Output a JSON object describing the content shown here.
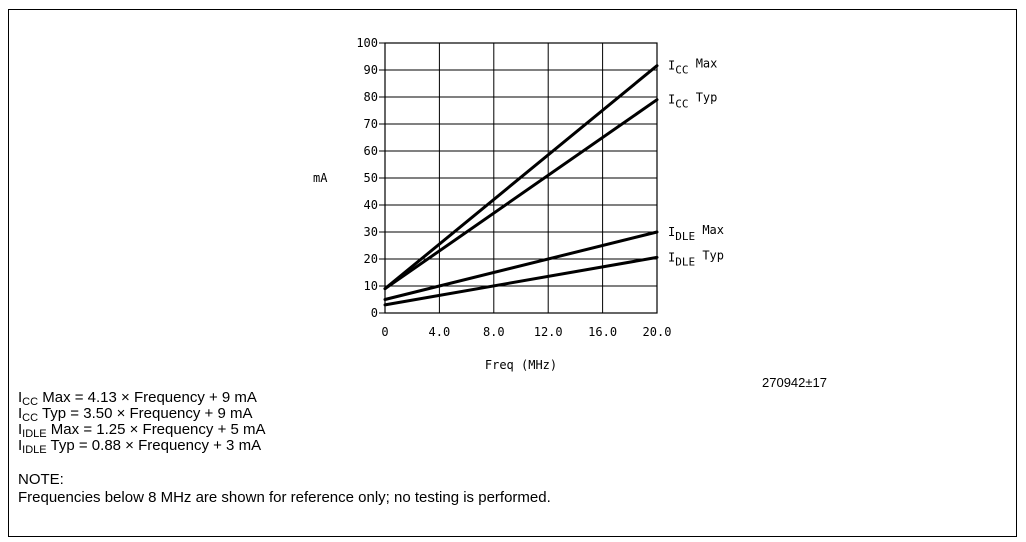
{
  "chart_data": {
    "type": "line",
    "xlabel": "Freq (MHz)",
    "ylabel": "mA",
    "xlim": [
      0,
      20
    ],
    "ylim": [
      0,
      100
    ],
    "x_ticks": [
      "0",
      "4.0",
      "8.0",
      "12.0",
      "16.0",
      "20.0"
    ],
    "y_ticks": [
      "0",
      "10",
      "20",
      "30",
      "40",
      "50",
      "60",
      "70",
      "80",
      "90",
      "100"
    ],
    "grid": true,
    "series": [
      {
        "name": "ICC Max",
        "main": "I",
        "sub": "CC",
        "suffix": "Max",
        "x": [
          0,
          20
        ],
        "y": [
          9,
          91.6
        ]
      },
      {
        "name": "ICC Typ",
        "main": "I",
        "sub": "CC",
        "suffix": "Typ",
        "x": [
          0,
          20
        ],
        "y": [
          9,
          79
        ]
      },
      {
        "name": "IDLE Max",
        "main": "I",
        "sub": "DLE",
        "suffix": "Max",
        "x": [
          0,
          20
        ],
        "y": [
          5,
          30
        ]
      },
      {
        "name": "IDLE Typ",
        "main": "I",
        "sub": "DLE",
        "suffix": "Typ",
        "x": [
          0,
          20
        ],
        "y": [
          3,
          20.6
        ]
      }
    ]
  },
  "figure_id": "270942±17",
  "equations": [
    {
      "main": "I",
      "sub": "CC",
      "rest": " Max = 4.13 × Frequency + 9 mA"
    },
    {
      "main": "I",
      "sub": "CC",
      "rest": " Typ = 3.50 × Frequency + 9 mA"
    },
    {
      "main": "I",
      "sub": "IDLE",
      "rest": " Max = 1.25 × Frequency + 5 mA"
    },
    {
      "main": "I",
      "sub": "IDLE",
      "rest": " Typ = 0.88 × Frequency + 3 mA"
    }
  ],
  "note": {
    "title": "NOTE:",
    "text": "Frequencies below 8 MHz are shown for reference only; no testing is performed."
  }
}
